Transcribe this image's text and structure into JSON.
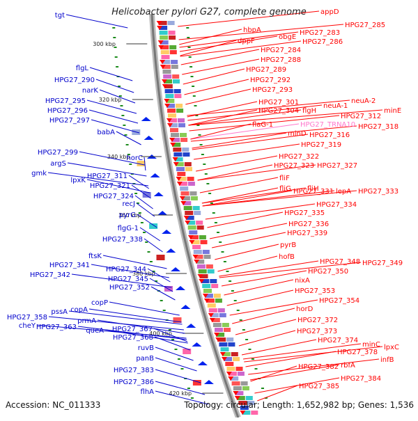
{
  "title": "Helicobacter pylori G27, complete genome",
  "footer": {
    "accession": "Accession: NC_011333",
    "summary": "Topology: circular; Length: 1,652,982 bp; Genes: 1,536"
  },
  "colors": {
    "left_label": "#0000cc",
    "right_label": "#ff0000",
    "trna_label": "#ff77cc",
    "backbone": "#aaaaaa",
    "tick": "#1a8a1a"
  },
  "kbp_ticks": [
    "300 kbp",
    "320 kbp",
    "340 kbp",
    "360 kbp",
    "380 kbp",
    "400 kbp",
    "420 kbp"
  ],
  "left_labels": [
    "tgt",
    "flgL",
    "HPG27_290",
    "narK",
    "HPG27_295",
    "HPG27_296",
    "HPG27_297",
    "babA",
    "HPG27_299",
    "horC",
    "argS",
    "gmk",
    "HPG27_311",
    "lpxK",
    "HPG27_321",
    "HPG27_324",
    "recJ",
    "pyrG",
    "flgG-1",
    "HPG27_338",
    "ftsK",
    "HPG27_341",
    "HPG27_344",
    "HPG27_342",
    "HPG27_345",
    "HPG27_352",
    "copP",
    "pssA",
    "copA",
    "HPG27_358",
    "prmA",
    "cheY",
    "HPG27_363",
    "queA",
    "HPG27_367",
    "HPG27_368",
    "ruvB",
    "panB",
    "HPG27_383",
    "HPG27_386",
    "flhA"
  ],
  "right_labels": [
    "appD",
    "HPG27_285",
    "hbpA",
    "obgE",
    "HPG27_283",
    "dppF",
    "HPG27_286",
    "HPG27_284",
    "HPG27_288",
    "HPG27_289",
    "HPG27_292",
    "HPG27_293",
    "HPG27_301",
    "neuA-2",
    "neuA-1",
    "HPG27_304",
    "flgH",
    "minE",
    "HPG27_312",
    "HPG27_TRNA10",
    "flaG-1",
    "HPG27_318",
    "minD",
    "HPG27_316",
    "HPG27_319",
    "HPG27_322",
    "HPG27_323",
    "HPG27_327",
    "fliF",
    "fliG",
    "fliH",
    "HPG27_331",
    "lepA",
    "HPG27_333",
    "HPG27_334",
    "HPG27_335",
    "HPG27_336",
    "HPG27_339",
    "pyrB",
    "hofB",
    "HPG27_348",
    "HPG27_349",
    "HPG27_350",
    "nixA",
    "HPG27_353",
    "HPG27_354",
    "horD",
    "HPG27_372",
    "HPG27_373",
    "HPG27_374",
    "minC",
    "lpxC",
    "HPG27_378",
    "infB",
    "rbfA",
    "HPG27_382",
    "HPG27_384",
    "HPG27_385"
  ]
}
